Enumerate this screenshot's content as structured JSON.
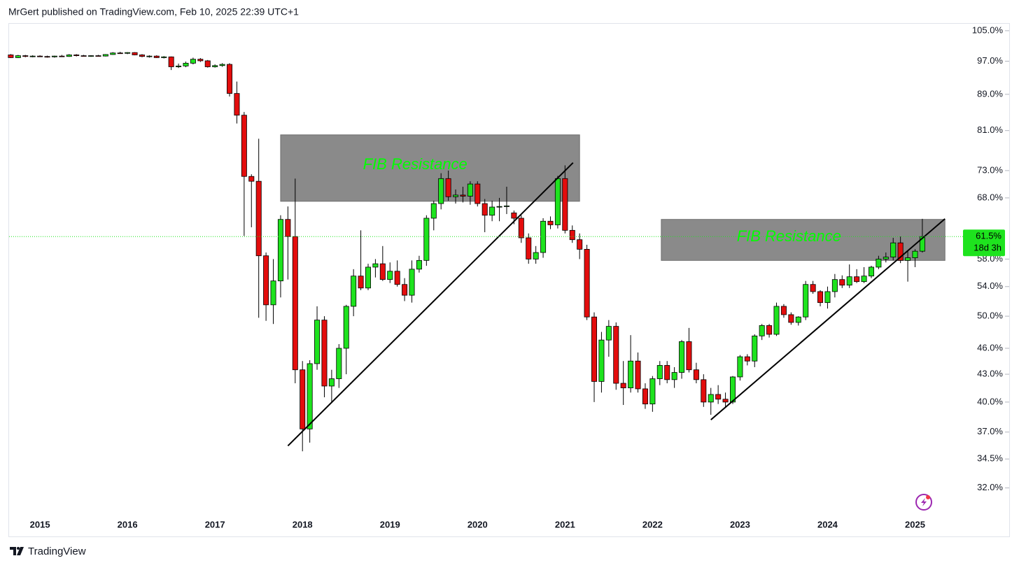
{
  "header": "MrGert published on TradingView.com, Feb 10, 2025 22:39 UTC+1",
  "footer": "TradingView",
  "chart_data": {
    "type": "candlestick",
    "log_scale": true,
    "up_color": "#1ee31e",
    "down_color": "#e30d0d",
    "categories": [
      null,
      null,
      null,
      null,
      "2015",
      null,
      null,
      null,
      null,
      null,
      null,
      null,
      null,
      null,
      null,
      null,
      "2016",
      null,
      null,
      null,
      null,
      null,
      null,
      null,
      null,
      null,
      null,
      null,
      "2017",
      null,
      null,
      null,
      null,
      null,
      null,
      null,
      null,
      null,
      null,
      null,
      "2018",
      null,
      null,
      null,
      null,
      null,
      null,
      null,
      null,
      null,
      null,
      null,
      "2019",
      null,
      null,
      null,
      null,
      null,
      null,
      null,
      null,
      null,
      null,
      null,
      "2020",
      null,
      null,
      null,
      null,
      null,
      null,
      null,
      null,
      null,
      null,
      null,
      "2021",
      null,
      null,
      null,
      null,
      null,
      null,
      null,
      null,
      null,
      null,
      null,
      "2022",
      null,
      null,
      null,
      null,
      null,
      null,
      null,
      null,
      null,
      null,
      null,
      "2023",
      null,
      null,
      null,
      null,
      null,
      null,
      null,
      null,
      null,
      null,
      null,
      "2024",
      null,
      null,
      null,
      null,
      null,
      null,
      null,
      null,
      null,
      null,
      null,
      "2025",
      null
    ],
    "open": [
      98.6,
      97.9,
      98.4,
      98.2,
      98.3,
      98.2,
      98.1,
      98.3,
      98.2,
      98.6,
      98.4,
      98.3,
      98.4,
      98.3,
      98.7,
      99.1,
      99.0,
      99.2,
      98.6,
      98.2,
      98.3,
      97.9,
      98.1,
      95.6,
      95.8,
      96.5,
      97.5,
      97.1,
      95.6,
      95.9,
      96.2,
      89.2,
      84.3,
      71.9,
      71.0,
      58.5,
      51.5,
      54.8,
      64.3,
      61.5,
      43.5,
      37.3,
      44.2,
      49.5,
      41.7,
      42.5,
      46.0,
      51.3,
      55.5,
      53.8,
      56.8,
      57.3,
      55.0,
      56.2,
      54.3,
      52.8,
      56.5,
      57.8,
      64.5,
      67.0,
      71.5,
      68.2,
      68.5,
      68.3,
      70.5,
      67.0,
      65.0,
      66.4,
      66.5,
      65.4,
      64.5,
      61.3,
      58.0,
      59.0,
      64.0,
      63.4,
      71.5,
      62.5,
      61.0,
      59.5,
      49.9,
      42.2,
      47.0,
      48.7,
      42.0,
      41.5,
      44.5,
      41.4,
      39.8,
      42.5,
      44.0,
      42.4,
      43.2,
      46.8,
      43.5,
      42.4,
      40.0,
      40.8,
      40.3,
      40.0,
      42.7,
      45.0,
      44.5,
      47.5,
      48.8,
      47.7,
      51.3,
      50.2,
      49.2,
      49.9,
      54.3,
      53.3,
      51.8,
      53.3,
      55.0,
      54.2,
      55.4,
      54.7,
      55.5,
      56.8,
      58.0,
      58.3,
      60.5,
      57.8,
      58.2,
      59.2
    ],
    "high": [
      98.8,
      98.6,
      98.6,
      98.5,
      98.5,
      98.4,
      98.4,
      98.6,
      98.8,
      98.8,
      98.6,
      98.5,
      98.6,
      98.8,
      99.3,
      99.4,
      99.3,
      99.3,
      98.8,
      98.5,
      98.5,
      98.3,
      98.2,
      96.4,
      96.9,
      97.9,
      97.8,
      97.3,
      96.2,
      96.5,
      96.5,
      92.0,
      85.0,
      72.3,
      79.3,
      59.0,
      58.0,
      65.0,
      66.5,
      71.5,
      44.5,
      44.6,
      51.3,
      50.0,
      43.5,
      46.5,
      51.5,
      56.5,
      62.5,
      57.3,
      58.0,
      60.0,
      57.5,
      57.8,
      55.2,
      57.8,
      58.5,
      65.0,
      67.5,
      72.5,
      73.0,
      69.5,
      70.0,
      71.0,
      71.0,
      67.8,
      67.5,
      68.0,
      70.0,
      65.8,
      65.0,
      62.0,
      60.0,
      64.5,
      64.8,
      72.0,
      74.0,
      63.3,
      62.0,
      60.2,
      50.5,
      48.0,
      49.5,
      49.2,
      44.5,
      47.6,
      45.5,
      42.0,
      42.8,
      44.5,
      44.5,
      43.8,
      47.0,
      48.5,
      44.3,
      43.0,
      41.5,
      41.8,
      41.0,
      42.8,
      45.2,
      45.3,
      47.7,
      49.0,
      49.0,
      51.8,
      51.6,
      50.5,
      50.0,
      54.8,
      54.8,
      53.5,
      54.0,
      55.8,
      55.6,
      57.2,
      56.5,
      56.8,
      57.0,
      58.5,
      59.0,
      61.3,
      61.5,
      59.3,
      59.5,
      64.4
    ],
    "low": [
      97.8,
      97.8,
      98.0,
      98.0,
      98.1,
      97.9,
      97.9,
      98.1,
      98.1,
      98.2,
      98.2,
      98.1,
      98.2,
      98.2,
      98.6,
      98.9,
      98.8,
      98.5,
      98.0,
      97.9,
      97.8,
      97.7,
      94.8,
      95.3,
      95.5,
      96.2,
      96.8,
      95.4,
      95.4,
      95.6,
      88.5,
      82.5,
      61.6,
      63.0,
      49.8,
      49.4,
      49.0,
      52.5,
      55.0,
      42.0,
      35.2,
      36.0,
      43.5,
      40.5,
      40.0,
      41.5,
      43.0,
      50.0,
      53.5,
      53.5,
      55.3,
      54.8,
      54.5,
      54.0,
      52.0,
      51.8,
      56.0,
      57.0,
      62.5,
      66.0,
      67.5,
      67.0,
      67.2,
      66.8,
      66.5,
      62.2,
      64.0,
      64.0,
      65.2,
      63.5,
      60.5,
      57.3,
      57.3,
      58.2,
      62.7,
      62.8,
      62.0,
      60.5,
      58.0,
      49.5,
      40.0,
      41.0,
      45.0,
      41.3,
      39.7,
      41.0,
      41.0,
      39.3,
      39.0,
      41.8,
      42.0,
      41.5,
      42.5,
      43.2,
      42.0,
      39.5,
      38.7,
      39.8,
      39.5,
      39.8,
      42.3,
      44.0,
      43.8,
      47.0,
      47.3,
      47.5,
      49.8,
      48.9,
      48.8,
      49.5,
      53.0,
      51.3,
      51.0,
      52.5,
      53.8,
      53.8,
      54.5,
      54.5,
      55.2,
      56.5,
      57.5,
      57.8,
      57.4,
      54.7,
      56.8,
      59.0
    ],
    "close": [
      97.9,
      98.4,
      98.2,
      98.3,
      98.2,
      98.1,
      98.3,
      98.2,
      98.6,
      98.4,
      98.3,
      98.4,
      98.3,
      98.7,
      99.1,
      99.0,
      99.2,
      98.6,
      98.2,
      98.3,
      97.9,
      98.1,
      95.6,
      95.8,
      96.5,
      97.5,
      97.1,
      95.6,
      95.9,
      96.2,
      89.2,
      84.3,
      71.9,
      71.0,
      58.5,
      51.5,
      54.8,
      64.3,
      61.5,
      43.5,
      37.3,
      44.2,
      49.5,
      41.7,
      42.5,
      46.0,
      51.3,
      55.5,
      53.8,
      56.8,
      57.3,
      55.0,
      56.2,
      54.3,
      52.8,
      56.5,
      57.8,
      64.5,
      67.0,
      71.5,
      68.2,
      68.5,
      68.3,
      70.5,
      67.0,
      65.0,
      66.4,
      66.5,
      66.6,
      64.5,
      61.3,
      58.0,
      59.0,
      64.0,
      63.4,
      71.5,
      62.5,
      61.0,
      59.5,
      49.9,
      42.2,
      47.0,
      48.7,
      42.0,
      41.5,
      44.5,
      41.4,
      39.8,
      42.5,
      44.0,
      42.4,
      43.2,
      46.8,
      43.5,
      42.4,
      40.0,
      40.8,
      40.3,
      40.0,
      42.7,
      45.0,
      44.5,
      47.5,
      48.8,
      47.7,
      51.3,
      50.2,
      49.2,
      49.9,
      54.3,
      53.3,
      51.8,
      53.3,
      55.0,
      54.2,
      55.4,
      54.7,
      55.5,
      56.8,
      58.0,
      58.3,
      60.5,
      57.8,
      58.2,
      59.2,
      61.5
    ],
    "last_price_label": "61.5%",
    "countdown": "18d 3h",
    "ylim": [
      29.9,
      107.1
    ],
    "yticks": [
      {
        "value": 105,
        "label": "105.0%"
      },
      {
        "value": 97,
        "label": "97.0%"
      },
      {
        "value": 89,
        "label": "89.0%"
      },
      {
        "value": 81,
        "label": "81.0%"
      },
      {
        "value": 73,
        "label": "73.0%"
      },
      {
        "value": 68,
        "label": "68.0%"
      },
      {
        "value": 58,
        "label": "58.0%"
      },
      {
        "value": 54,
        "label": "54.0%"
      },
      {
        "value": 50,
        "label": "50.0%"
      },
      {
        "value": 46,
        "label": "46.0%"
      },
      {
        "value": 43,
        "label": "43.0%"
      },
      {
        "value": 40,
        "label": "40.0%"
      },
      {
        "value": 37,
        "label": "37.0%"
      },
      {
        "value": 34.5,
        "label": "34.5%"
      },
      {
        "value": 32,
        "label": "32.0%"
      }
    ],
    "annotations": [
      {
        "text": "FIB Resistance",
        "x": [
          37.0,
          78.0
        ],
        "y": [
          67.4,
          80.1
        ]
      },
      {
        "text": "FIB Resistance",
        "x": [
          89.2,
          128.1
        ],
        "y": [
          57.8,
          64.3
        ]
      }
    ],
    "trendlines": [
      {
        "x": [
          38.0,
          77.1
        ],
        "y": [
          35.7,
          74.5
        ]
      },
      {
        "x": [
          96.0,
          128.1
        ],
        "y": [
          38.2,
          64.4
        ]
      }
    ]
  }
}
